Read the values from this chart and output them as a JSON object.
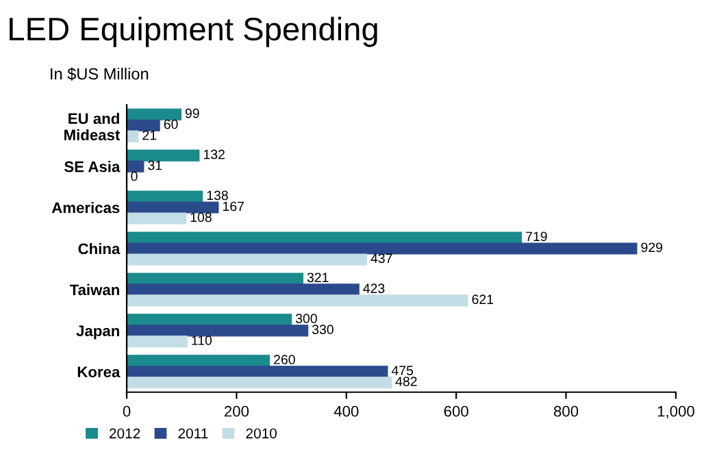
{
  "chart_data": {
    "type": "bar",
    "orientation": "horizontal",
    "title": "LED Equipment Spending",
    "subtitle": "In $US Million",
    "categories": [
      "EU and\nMideast",
      "SE Asia",
      "Americas",
      "China",
      "Taiwan",
      "Japan",
      "Korea"
    ],
    "series": [
      {
        "name": "2012",
        "color": "#1b8a8c",
        "values": [
          99,
          132,
          138,
          719,
          321,
          300,
          260
        ]
      },
      {
        "name": "2011",
        "color": "#2b4a8c",
        "values": [
          60,
          31,
          167,
          929,
          423,
          330,
          475
        ]
      },
      {
        "name": "2010",
        "color": "#c3dde6",
        "values": [
          21,
          0,
          108,
          437,
          621,
          110,
          482
        ]
      }
    ],
    "xlim": [
      0,
      1000
    ],
    "xticks": [
      0,
      200,
      400,
      600,
      800,
      {
        "value": 1000,
        "label": "1,000"
      }
    ],
    "grid": false,
    "legend": "bottom",
    "data_labels": true
  }
}
